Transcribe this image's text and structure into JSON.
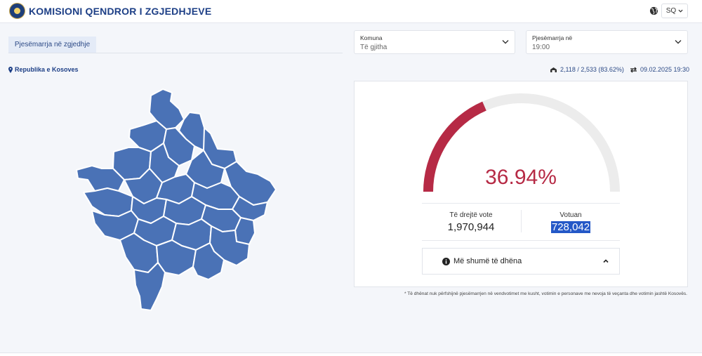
{
  "header": {
    "brand": "KOMISIONI QENDROR I ZGJEDHJEVE",
    "language": "SQ",
    "logo_icon": "kqz-emblem-icon",
    "globe_icon": "globe-icon"
  },
  "tabs": [
    {
      "label": "Pjesëmarrja në zgjedhje",
      "active": true
    }
  ],
  "filters": {
    "municipality": {
      "label": "Komuna",
      "value": "Të gjitha"
    },
    "time": {
      "label": "Pjesëmarrja në",
      "value": "19:00"
    }
  },
  "location": {
    "label": "Republika e Kosoves",
    "icon": "map-pin-icon"
  },
  "stats": {
    "stations": "2,118 / 2,533 (83.62%)",
    "stations_icon": "polling-station-icon",
    "updated": "09.02.2025 19:30",
    "updated_icon": "sync-arrows-icon"
  },
  "turnout": {
    "percent_text": "36.94%",
    "percent_value": 36.94,
    "eligible_label": "Të drejtë vote",
    "eligible_value": "1,970,944",
    "voted_label": "Votuan",
    "voted_value": "728,042",
    "more_label": "Më shumë të dhëna",
    "gauge_fill_color": "#b62a45",
    "gauge_track_color": "#ececec"
  },
  "map": {
    "region_color": "#4a72b6",
    "border_color": "#ffffff"
  },
  "footnote": "* Të dhënat nuk përfshijnë pjesëmarrjen në vendvotimet me kusht, votimin e personave me nevoja të veçanta dhe votimin jashtë Kosovës."
}
